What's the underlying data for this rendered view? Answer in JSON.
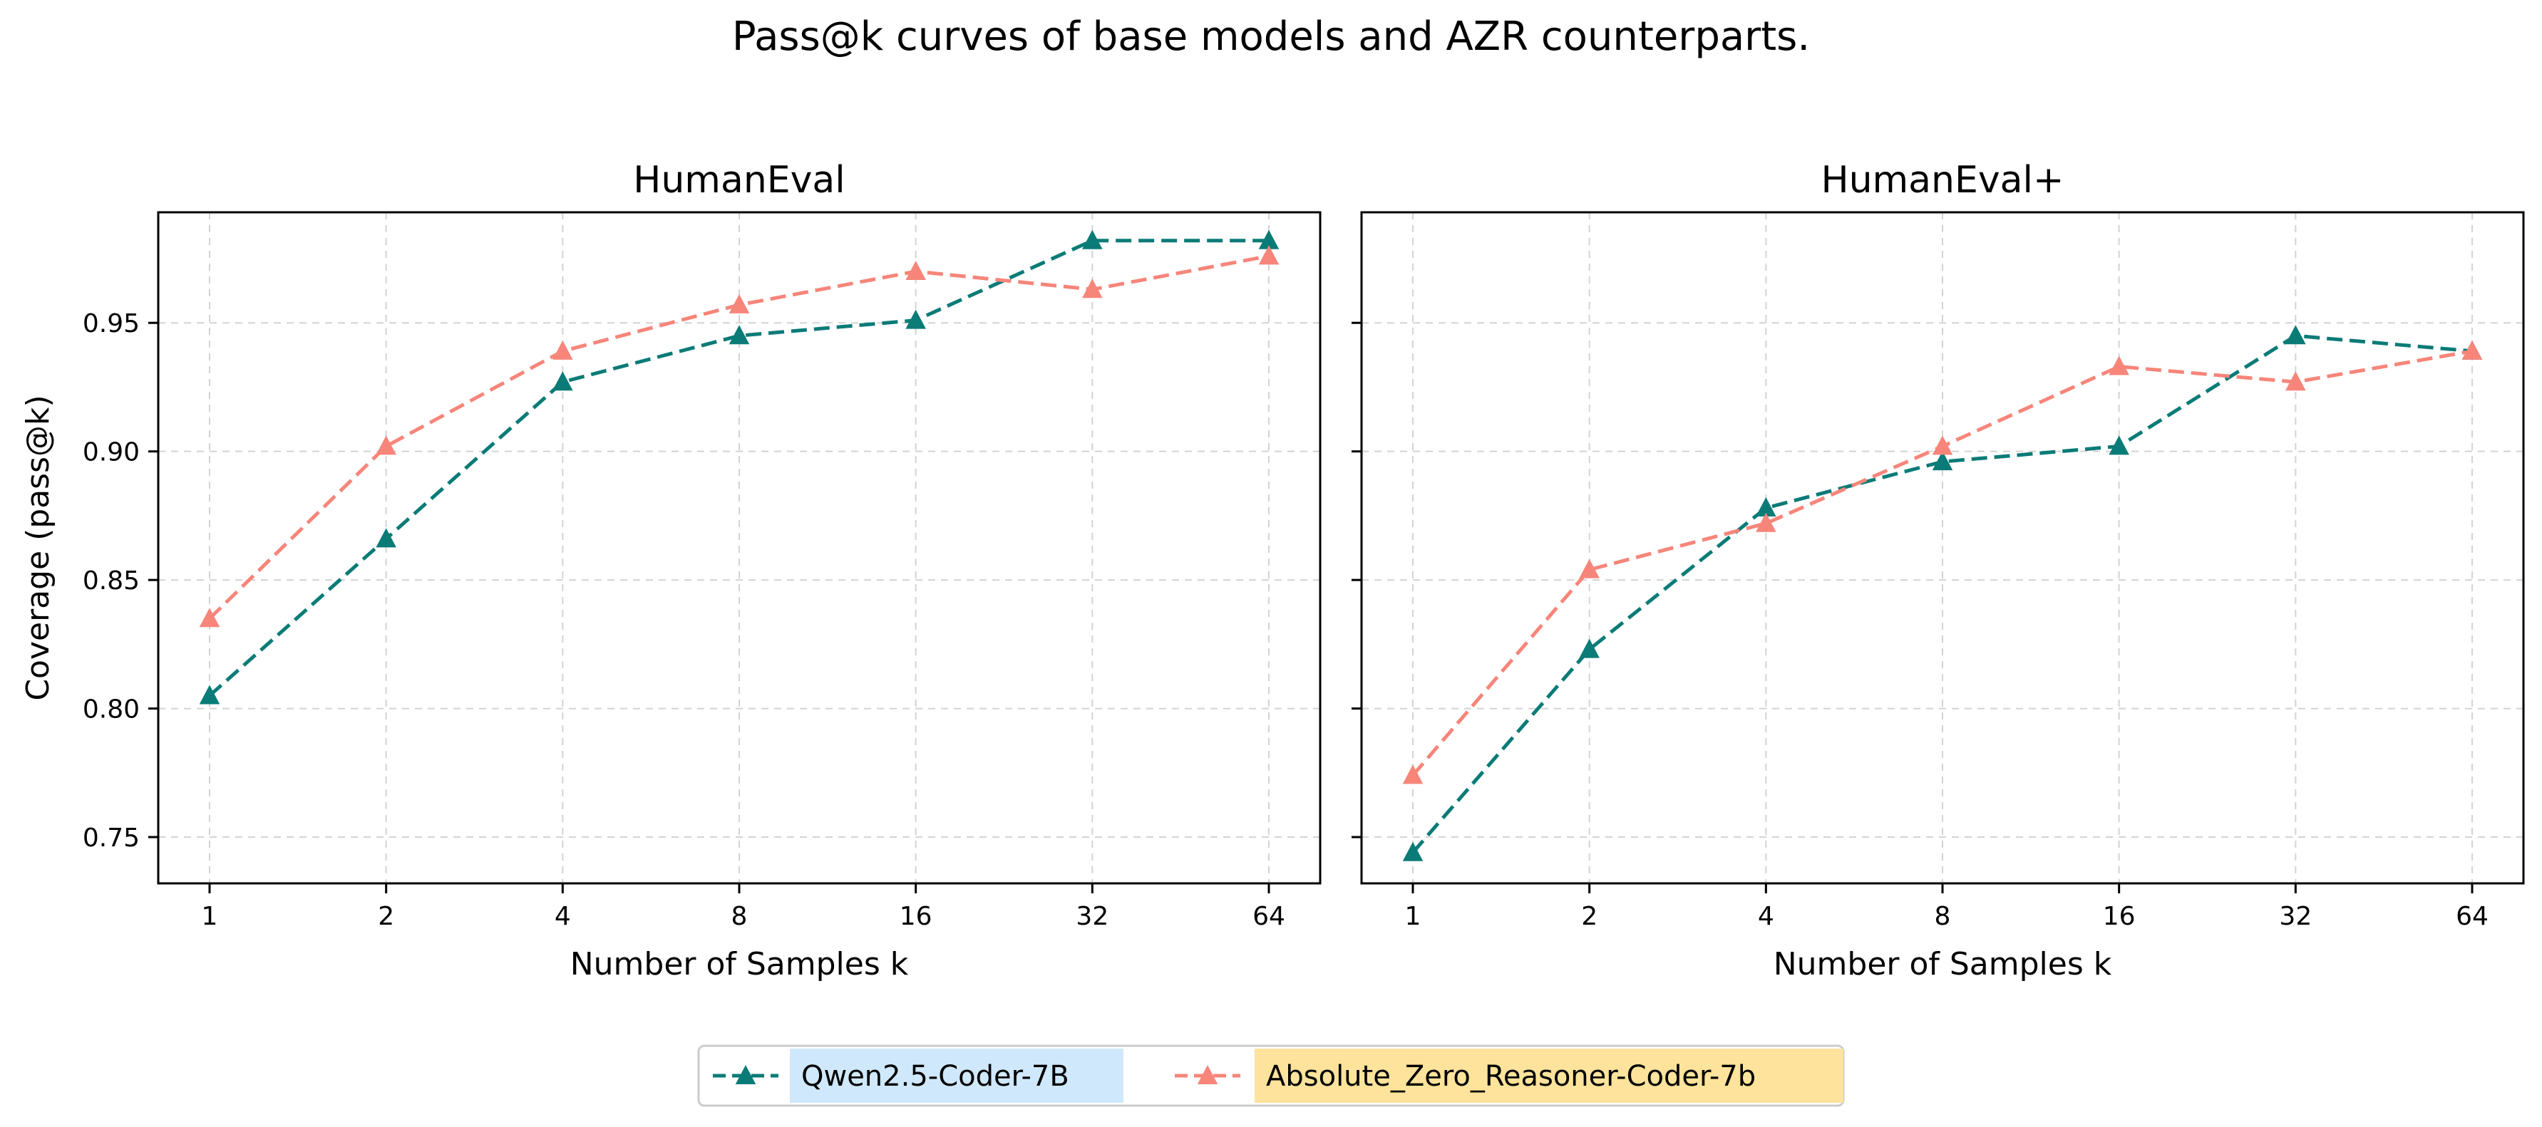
{
  "figure_title": "Pass@k curves of base models and AZR counterparts.",
  "legend": [
    {
      "label": "Qwen2.5-Coder-7B",
      "color": "#0a7b77",
      "highlight": "#cfe8fb",
      "marker": "triangle-up"
    },
    {
      "label": "Absolute_Zero_Reasoner-Coder-7b",
      "color": "#f7857a",
      "highlight": "#fde39b",
      "marker": "triangle-up"
    }
  ],
  "chart_data": [
    {
      "type": "line",
      "title": "HumanEval",
      "xlabel": "Number of Samples k",
      "ylabel": "Coverage (pass@k)",
      "x": [
        1,
        2,
        4,
        8,
        16,
        32,
        64
      ],
      "xscale": "log2",
      "xticklabels": [
        "1",
        "2",
        "4",
        "8",
        "16",
        "32",
        "64"
      ],
      "ylim": [
        0.732,
        0.993
      ],
      "yticks": [
        0.75,
        0.8,
        0.85,
        0.9,
        0.95
      ],
      "yticklabels": [
        "0.75",
        "0.80",
        "0.85",
        "0.90",
        "0.95"
      ],
      "grid": true,
      "series": [
        {
          "name": "Qwen2.5-Coder-7B",
          "color": "#0a7b77",
          "values": [
            0.805,
            0.866,
            0.927,
            0.945,
            0.951,
            0.982,
            0.982
          ]
        },
        {
          "name": "Absolute_Zero_Reasoner-Coder-7b",
          "color": "#f7857a",
          "values": [
            0.835,
            0.902,
            0.939,
            0.957,
            0.97,
            0.963,
            0.976
          ]
        }
      ]
    },
    {
      "type": "line",
      "title": "HumanEval+",
      "xlabel": "Number of Samples k",
      "ylabel": "",
      "x": [
        1,
        2,
        4,
        8,
        16,
        32,
        64
      ],
      "xscale": "log2",
      "xticklabels": [
        "1",
        "2",
        "4",
        "8",
        "16",
        "32",
        "64"
      ],
      "ylim": [
        0.732,
        0.993
      ],
      "yticks": [
        0.75,
        0.8,
        0.85,
        0.9,
        0.95
      ],
      "yticklabels": [
        "",
        "",
        "",
        "",
        ""
      ],
      "grid": true,
      "series": [
        {
          "name": "Qwen2.5-Coder-7B",
          "color": "#0a7b77",
          "values": [
            0.744,
            0.823,
            0.878,
            0.896,
            0.902,
            0.945,
            0.939
          ]
        },
        {
          "name": "Absolute_Zero_Reasoner-Coder-7b",
          "color": "#f7857a",
          "values": [
            0.774,
            0.854,
            0.872,
            0.902,
            0.933,
            0.927,
            0.939
          ]
        }
      ]
    }
  ]
}
